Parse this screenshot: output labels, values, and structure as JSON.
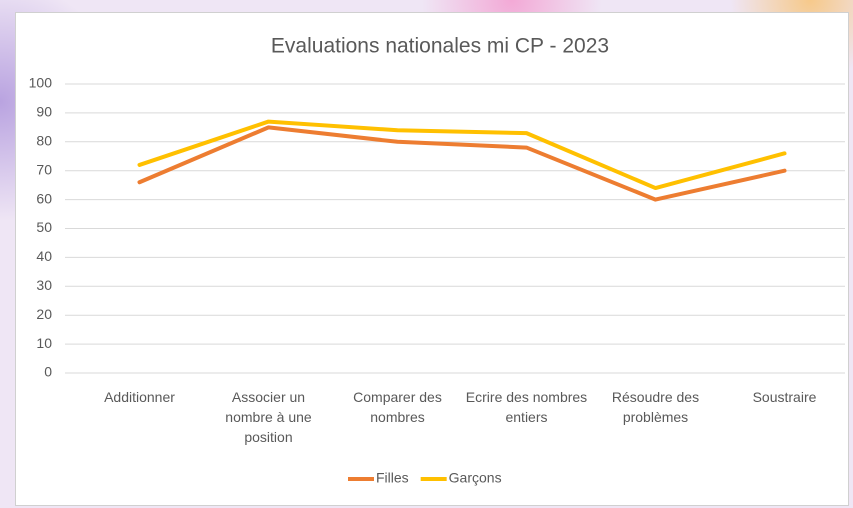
{
  "chart_data": {
    "type": "line",
    "title": "Evaluations nationales mi CP - 2023",
    "categories": [
      "Additionner",
      "Associer un nombre à une position",
      "Comparer des nombres",
      "Ecrire des nombres entiers",
      "Résoudre des problèmes",
      "Soustraire"
    ],
    "series": [
      {
        "name": "Filles",
        "color": "#ed7d31",
        "values": [
          66,
          85,
          80,
          78,
          60,
          70
        ]
      },
      {
        "name": "Garçons",
        "color": "#ffc000",
        "values": [
          72,
          87,
          84,
          83,
          64,
          76
        ]
      }
    ],
    "ylim": [
      0,
      100
    ],
    "yticks": [
      0,
      10,
      20,
      30,
      40,
      50,
      60,
      70,
      80,
      90,
      100
    ],
    "grid": true,
    "legend": "bottom"
  }
}
